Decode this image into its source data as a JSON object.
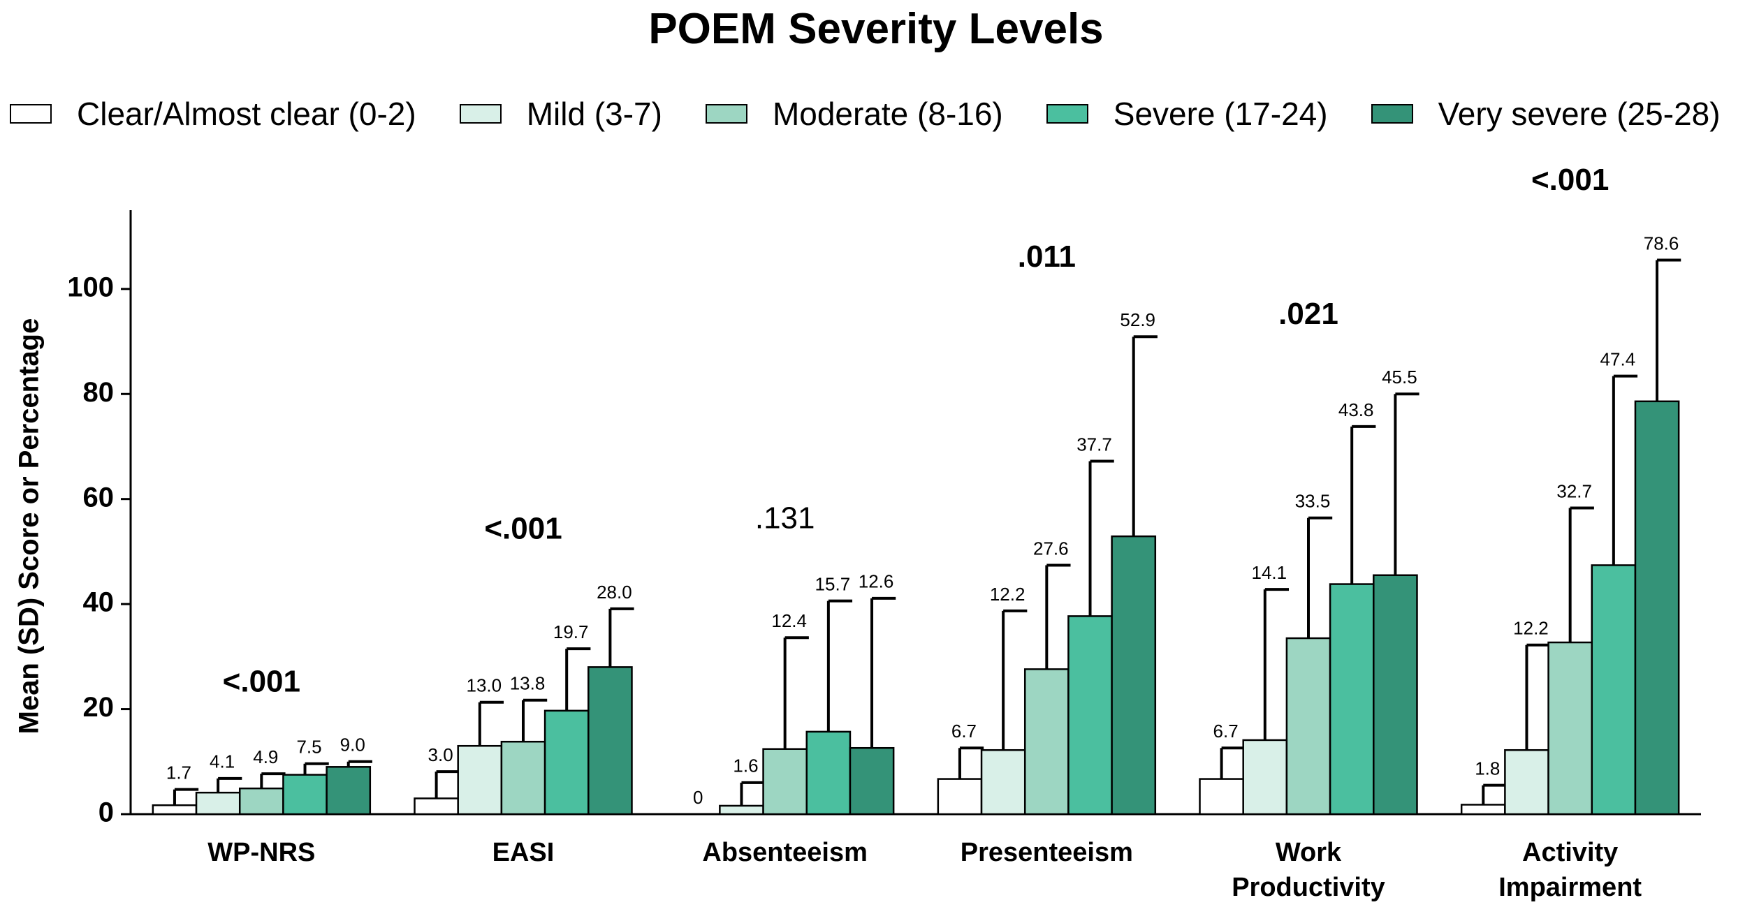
{
  "chart_data": {
    "type": "bar",
    "title": "POEM Severity Levels",
    "y_label": "Mean (SD) Score or Percentage",
    "categories": [
      "WP-NRS",
      "EASI",
      "Absenteeism",
      "Presenteeism",
      "Work Productivity",
      "Activity Impairment"
    ],
    "annotations": [
      "<.001",
      "<.001",
      ".131",
      ".011",
      ".021",
      "<.001"
    ],
    "annotation_bold": [
      true,
      true,
      false,
      true,
      true,
      true
    ],
    "series": [
      {
        "name": "Clear/Almost clear (0-2)",
        "color": "#ffffff",
        "values": [
          1.7,
          3.0,
          0,
          6.7,
          6.7,
          1.8
        ],
        "value_labels": [
          "1.7",
          "3.0",
          "0",
          "6.7",
          "6.7",
          "1.8"
        ],
        "errors": [
          3.0,
          5.1,
          null,
          5.9,
          5.9,
          3.7
        ]
      },
      {
        "name": "Mild (3-7)",
        "color": "#d9f0e8",
        "values": [
          4.1,
          13.0,
          1.6,
          12.2,
          14.1,
          12.2
        ],
        "value_labels": [
          "4.1",
          "13.0",
          "1.6",
          "12.2",
          "14.1",
          "12.2"
        ],
        "errors": [
          2.7,
          8.3,
          4.4,
          26.5,
          28.7,
          20.0
        ]
      },
      {
        "name": "Moderate (8-16)",
        "color": "#9dd6c2",
        "values": [
          4.9,
          13.8,
          12.4,
          27.6,
          33.5,
          32.7
        ],
        "value_labels": [
          "4.9",
          "13.8",
          "12.4",
          "27.6",
          "33.5",
          "32.7"
        ],
        "errors": [
          2.8,
          7.9,
          21.2,
          19.8,
          22.9,
          25.6
        ]
      },
      {
        "name": "Severe (17-24)",
        "color": "#4bbf9f",
        "values": [
          7.5,
          19.7,
          15.7,
          37.7,
          43.8,
          47.4
        ],
        "value_labels": [
          "7.5",
          "19.7",
          "15.7",
          "37.7",
          "43.8",
          "47.4"
        ],
        "errors": [
          2.1,
          11.8,
          24.9,
          29.5,
          30.0,
          36.0
        ]
      },
      {
        "name": "Very severe (25-28)",
        "color": "#349378",
        "values": [
          9.0,
          28.0,
          12.6,
          52.9,
          45.5,
          78.6
        ],
        "value_labels": [
          "9.0",
          "28.0",
          "12.6",
          "52.9",
          "45.5",
          "78.6"
        ],
        "errors": [
          1.0,
          11.1,
          28.5,
          38.0,
          34.5,
          26.9
        ]
      }
    ],
    "ylim": [
      0,
      115
    ],
    "yticks": [
      0,
      20,
      40,
      60,
      80,
      100
    ],
    "grid": false
  }
}
